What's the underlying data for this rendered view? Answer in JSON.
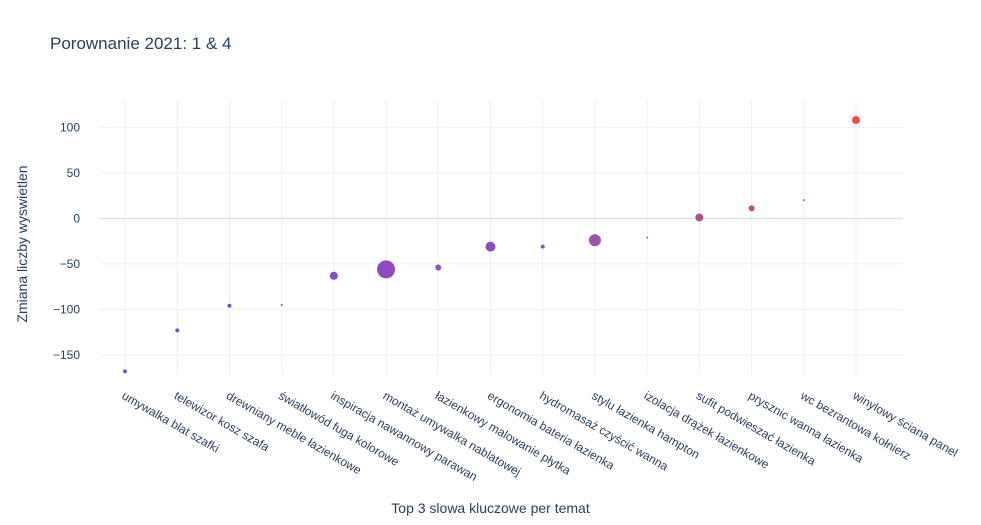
{
  "chart_data": {
    "type": "scatter",
    "title": "Porownanie 2021: 1 & 4",
    "xlabel": "Top 3 slowa kluczowe per temat",
    "ylabel": "Zmiana liczby wyswietlen",
    "ylim": [
      -172,
      130
    ],
    "yticks": [
      100,
      50,
      0,
      -50,
      -100,
      -150
    ],
    "ytick_labels": [
      "100",
      "50",
      "0",
      "−50",
      "−100",
      "−150"
    ],
    "grid": true,
    "legend": "none",
    "categories": [
      "umywalka blat szafki",
      "telewizor kosz szafa",
      "drewniany meble łazienkowe",
      "światłowód fuga kolorowe",
      "inspiracja nawannowy parawan",
      "montaż umywalka nablatowej",
      "łazienkowy malowanie płytka",
      "ergonomia bateria łazienka",
      "hydromasaż czyścić wanna",
      "stylu łazienka hampton",
      "izolacja drążek łazienkowe",
      "sufit podwieszać łazienka",
      "prysznic wanna łazienka",
      "wc bezrantowa kołnierz",
      "winylowy ściana panel"
    ],
    "values": [
      -168,
      -123,
      -96,
      -95,
      -63,
      -56,
      -54,
      -31,
      -31,
      -24,
      -21,
      1,
      11,
      20,
      108
    ],
    "sizes": [
      2,
      2,
      2,
      1,
      4,
      9,
      3,
      5,
      2,
      6,
      1,
      4,
      3,
      1,
      4
    ],
    "colors": [
      "#5a4ed6",
      "#604bd2",
      "#6348cf",
      "#6648cf",
      "#7f44c4",
      "#8a40c0",
      "#8e40bc",
      "#8c45b4",
      "#9845b0",
      "#9b48a8",
      "#aa4a98",
      "#ab4784",
      "#b24678",
      "#dc3f5a",
      "#f0433a"
    ]
  }
}
